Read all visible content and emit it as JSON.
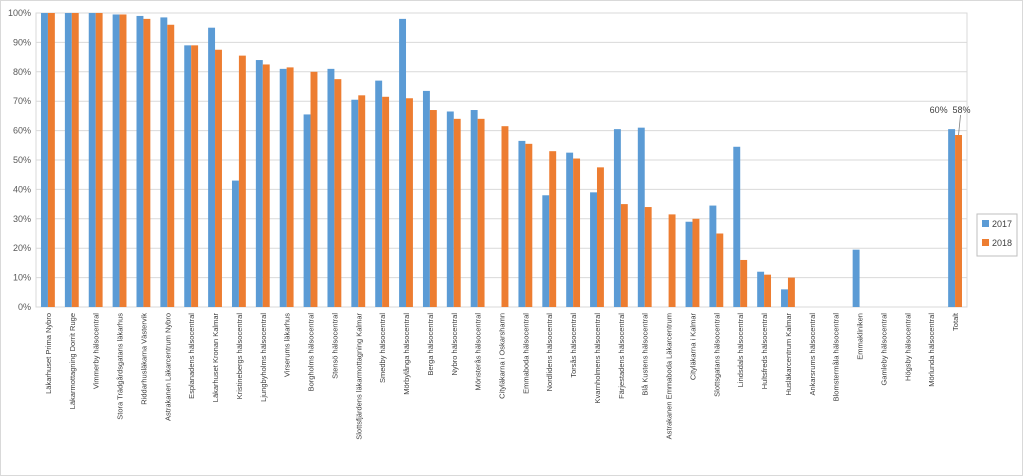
{
  "chart_data": {
    "type": "bar",
    "categories": [
      "Läkarhuset Prima Nybro",
      "Läkarmottagning Dorrit Ruge",
      "Vimmerby hälsocentral",
      "Stora Trädgårdsgatans läkarhus",
      "Riddarhusläkarna Västervik",
      "Astrakanen Läkarcentrum Nybro",
      "Esplanadens hälsocentral",
      "Läkarhuset Kronan Kalmar",
      "Kristinebergs hälsocentral",
      "Ljungbyholms hälsocentral",
      "Virserums läkarhus",
      "Borgholms hälsocentral",
      "Stensö hälsocentral",
      "Slottsfjärdens läkarmottagning Kalmar",
      "Smedby hälsocentral",
      "Mörbylånga hälsocentral",
      "Berga hälsocentral",
      "Nybro hälsocentral",
      "Mönsterås hälsocentral",
      "Cityläkarna i Oskarshamn",
      "Emmaboda hälsocentral",
      "Nordlidens hälsocentral",
      "Torsås hälsocentral",
      "Kvarnholmens hälsocentral",
      "Färjestadens hälsocentral",
      "Blå Kustens hälsocentral",
      "Astrakanen Emmaboda Läkarcentrum",
      "Cityläkarna i Kalmar",
      "Slottsgatans hälsocentral",
      "Lindsdals hälsocentral",
      "Hultsfreds hälsocentral",
      "Husläkarcentrum Kalmar",
      "Ankarsrums hälsocentral",
      "Blomstermåla hälsocentral",
      "Emmakliniken",
      "Gamleby hälsocentral",
      "Högsby hälsocentral",
      "Mörlunda hälsocentral",
      "Totalt"
    ],
    "series": [
      {
        "name": "2017",
        "color": "#5b9bd5",
        "values": [
          100,
          100,
          100,
          99.5,
          99,
          98.5,
          89,
          95,
          43,
          84,
          81,
          65.5,
          81,
          70.5,
          77,
          98,
          73.5,
          66.5,
          67,
          0,
          56.5,
          38,
          52.5,
          39,
          60.5,
          61,
          0,
          29,
          34.5,
          54.5,
          12,
          6,
          0,
          0,
          19.5,
          0,
          0,
          0,
          60.5
        ]
      },
      {
        "name": "2018",
        "color": "#ed7d31",
        "values": [
          100,
          100,
          100,
          99.5,
          98,
          96,
          89,
          87.5,
          85.5,
          82.5,
          81.5,
          80,
          77.5,
          72,
          71.5,
          71,
          67,
          64,
          64,
          61.5,
          55.5,
          53,
          50.5,
          47.5,
          35,
          34,
          31.5,
          30,
          25,
          16,
          11,
          10,
          0,
          0,
          0,
          0,
          0,
          0,
          58.5
        ]
      }
    ],
    "data_labels": [
      {
        "text": "60%",
        "category": "Totalt",
        "series": "2017"
      },
      {
        "text": "58%",
        "category": "Totalt",
        "series": "2018"
      }
    ],
    "y_ticks": [
      "0%",
      "10%",
      "20%",
      "30%",
      "40%",
      "50%",
      "60%",
      "70%",
      "80%",
      "90%",
      "100%"
    ],
    "ylim": [
      0,
      100
    ],
    "title": "",
    "xlabel": "",
    "ylabel": "",
    "grid": true,
    "legend_position": "right"
  }
}
